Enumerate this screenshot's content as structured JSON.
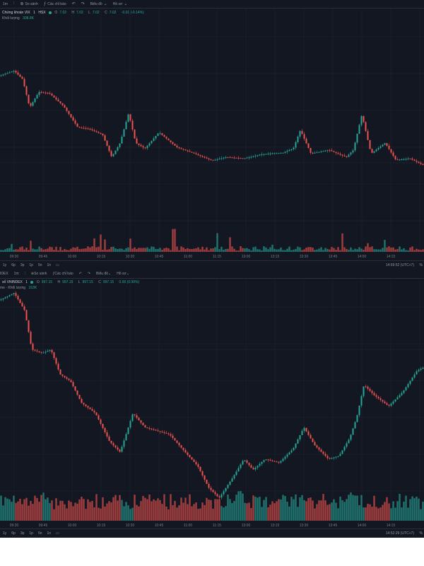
{
  "colors": {
    "up": "#26a69a",
    "down": "#ef5350",
    "bg": "#131722",
    "grid": "#1f2430"
  },
  "chart1": {
    "toolbar": {
      "interval": "1m",
      "compare": "So sánh",
      "indicators": "Các chỉ báo",
      "chart_type": "Biểu đồ",
      "profile": "Hồ sơ"
    },
    "legend": {
      "symbol": "Chứng khoán VIX",
      "interval": "1",
      "exchange": "HSX",
      "open_label": "O",
      "open": "7.02",
      "high_label": "H",
      "high": "7.02",
      "low_label": "L",
      "low": "7.02",
      "close_label": "C",
      "close": "7.02",
      "change": "-0.01 (-0.14%)",
      "volume_label": "Khối lượng",
      "volume": "308.8K"
    },
    "time_labels": [
      "09:30",
      "09:45",
      "10:00",
      "10:15",
      "10:30",
      "10:45",
      "11:00",
      "11:15",
      "13:00",
      "13:15",
      "13:30",
      "13:45",
      "14:00",
      "14:15"
    ],
    "ranges": [
      "1y",
      "6p",
      "3p",
      "1p",
      "5n",
      "1n"
    ],
    "clock": "14:59:52 (UTC+7)",
    "pct": "%"
  },
  "chart2": {
    "toolbar": {
      "symbol_short": "IDEX",
      "interval": "1m",
      "compare": "So sánh",
      "indicators": "Các chỉ báo",
      "chart_type": "Biểu đồ",
      "profile": "Hồ sơ"
    },
    "legend": {
      "symbol": "số VNINDEX",
      "interval": "1",
      "open_label": "O",
      "open": "997.15",
      "high_label": "H",
      "high": "997.15",
      "low_label": "L",
      "low": "997.15",
      "close_label": "C",
      "close": "997.15",
      "change": "0.00 (0.00%)",
      "volume_label": "me · Khối lượng",
      "volume": "153K"
    },
    "time_labels": [
      "09:30",
      "09:45",
      "10:00",
      "10:15",
      "10:30",
      "10:45",
      "11:00",
      "11:15",
      "13:00",
      "13:15",
      "13:30",
      "13:45",
      "14:00",
      "14:15"
    ],
    "ranges": [
      "1y",
      "6p",
      "3p",
      "1p",
      "5n",
      "1n"
    ],
    "clock": "14:52:29 (UTC+7)",
    "pct": "%"
  }
}
